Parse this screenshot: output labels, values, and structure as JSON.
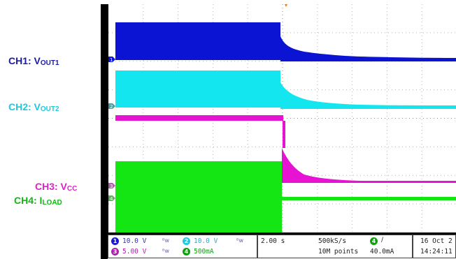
{
  "labels": {
    "ch1": {
      "main": "CH1: V",
      "sub": "OUT1",
      "color": "#1a1aa8"
    },
    "ch2": {
      "main": "CH2: V",
      "sub": "OUT2",
      "color": "#1ec8e0"
    },
    "ch3": {
      "main": "CH3: V",
      "sub": "CC",
      "color": "#e020c8"
    },
    "ch4": {
      "main": "CH4: I",
      "sub": "LOAD",
      "color": "#10b810"
    }
  },
  "channels": [
    {
      "id": "1",
      "scale": "10.0 V",
      "color": "#1a1ad0",
      "text_color": "#3030c0"
    },
    {
      "id": "2",
      "scale": "10.0 V",
      "color": "#20c8e0",
      "text_color": "#20b0d0"
    },
    {
      "id": "3",
      "scale": "5.00 V",
      "color": "#b020b0",
      "text_color": "#b020b0"
    },
    {
      "id": "4",
      "scale": "500mA",
      "color": "#10a010",
      "text_color": "#10a010"
    }
  ],
  "timebase": "2.00 s",
  "sample_rate": "500kS/s",
  "record_length": "10M points",
  "trigger": {
    "channel": "4",
    "slope_icon": "rising-edge-icon",
    "level": "40.0mA"
  },
  "date": "16 Oct 2",
  "time": "14:24:11",
  "colors": {
    "ch1": "#0a14d2",
    "ch2": "#14e6f0",
    "ch3": "#e614d2",
    "ch4": "#14e614",
    "grid": "#b4b4b4"
  }
}
